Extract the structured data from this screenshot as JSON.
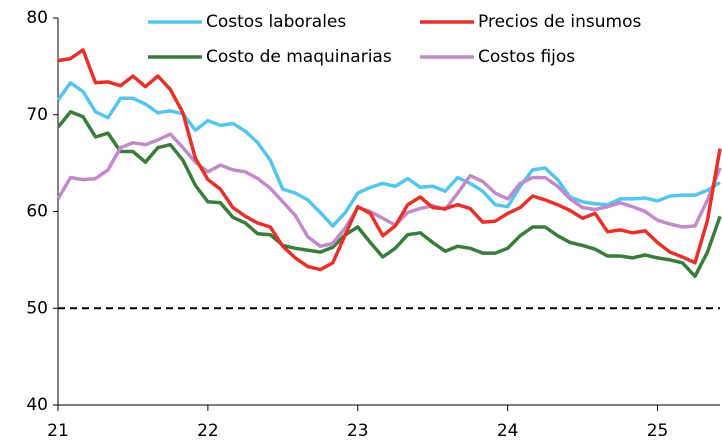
{
  "chart_data": {
    "type": "line",
    "categories": [
      "21",
      null,
      null,
      null,
      null,
      null,
      null,
      null,
      null,
      null,
      null,
      null,
      "22",
      null,
      null,
      null,
      null,
      null,
      null,
      null,
      null,
      null,
      null,
      null,
      "23",
      null,
      null,
      null,
      null,
      null,
      null,
      null,
      null,
      null,
      null,
      null,
      "24",
      null,
      null,
      null,
      null,
      null,
      null,
      null,
      null,
      null,
      null,
      null,
      "25",
      null,
      null,
      null,
      null,
      null
    ],
    "series": [
      {
        "name": "Costos laborales",
        "color": "#55c5ef",
        "values": [
          71.5,
          73.3,
          72.4,
          70.3,
          69.7,
          71.7,
          71.7,
          71.1,
          70.2,
          70.4,
          70.1,
          68.4,
          69.4,
          68.9,
          69.1,
          68.3,
          67.1,
          65.3,
          62.3,
          61.9,
          61.2,
          59.9,
          58.5,
          59.9,
          61.9,
          62.5,
          62.9,
          62.6,
          63.4,
          62.5,
          62.6,
          62.1,
          63.5,
          62.9,
          62.1,
          60.7,
          60.5,
          62.6,
          64.3,
          64.5,
          63.3,
          61.5,
          61.0,
          60.8,
          60.7,
          61.3,
          61.3,
          61.4,
          61.1,
          61.6,
          61.7,
          61.7,
          62.2,
          63.0
        ]
      },
      {
        "name": "Precios de insumos",
        "color": "#e8302a",
        "values": [
          75.6,
          75.8,
          76.7,
          73.3,
          73.4,
          73.0,
          74.0,
          72.9,
          74.0,
          72.6,
          70.2,
          65.5,
          63.3,
          62.3,
          60.4,
          59.5,
          58.8,
          58.4,
          56.4,
          55.2,
          54.3,
          54.0,
          54.7,
          57.6,
          60.5,
          59.8,
          57.5,
          58.5,
          60.7,
          61.5,
          60.4,
          60.3,
          60.7,
          60.3,
          58.9,
          59.0,
          59.8,
          60.4,
          61.6,
          61.2,
          60.7,
          60.1,
          59.3,
          59.8,
          57.9,
          58.1,
          57.8,
          58.0,
          56.8,
          55.8,
          55.3,
          54.7,
          59.1,
          66.5
        ]
      },
      {
        "name": "Costo de maquinarias",
        "color": "#3a7d3a",
        "values": [
          68.7,
          70.3,
          69.8,
          67.7,
          68.1,
          66.2,
          66.2,
          65.1,
          66.6,
          66.9,
          65.3,
          62.7,
          61.0,
          60.9,
          59.4,
          58.8,
          57.7,
          57.6,
          56.5,
          56.2,
          56.0,
          55.8,
          56.3,
          57.6,
          58.4,
          56.8,
          55.3,
          56.2,
          57.6,
          57.8,
          56.8,
          55.9,
          56.4,
          56.2,
          55.7,
          55.7,
          56.2,
          57.5,
          58.4,
          58.4,
          57.5,
          56.8,
          56.5,
          56.1,
          55.4,
          55.4,
          55.2,
          55.5,
          55.2,
          55.0,
          54.7,
          53.3,
          55.8,
          59.5
        ]
      },
      {
        "name": "Costos fijos",
        "color": "#c18ac9",
        "values": [
          61.3,
          63.5,
          63.3,
          63.4,
          64.3,
          66.6,
          67.1,
          66.9,
          67.4,
          68.0,
          66.6,
          65.1,
          64.1,
          64.8,
          64.3,
          64.1,
          63.4,
          62.4,
          61.0,
          59.6,
          57.4,
          56.4,
          56.7,
          58.3,
          60.4,
          60.0,
          59.3,
          58.6,
          59.9,
          60.3,
          60.6,
          60.2,
          61.9,
          63.7,
          63.1,
          61.9,
          61.3,
          62.9,
          63.5,
          63.5,
          62.6,
          61.3,
          60.4,
          60.2,
          60.5,
          60.9,
          60.5,
          60.0,
          59.1,
          58.7,
          58.4,
          58.5,
          61.2,
          64.5
        ]
      }
    ],
    "ylim": [
      40,
      80
    ],
    "yticks": [
      40,
      50,
      60,
      70,
      80
    ],
    "reference_line": 50
  }
}
